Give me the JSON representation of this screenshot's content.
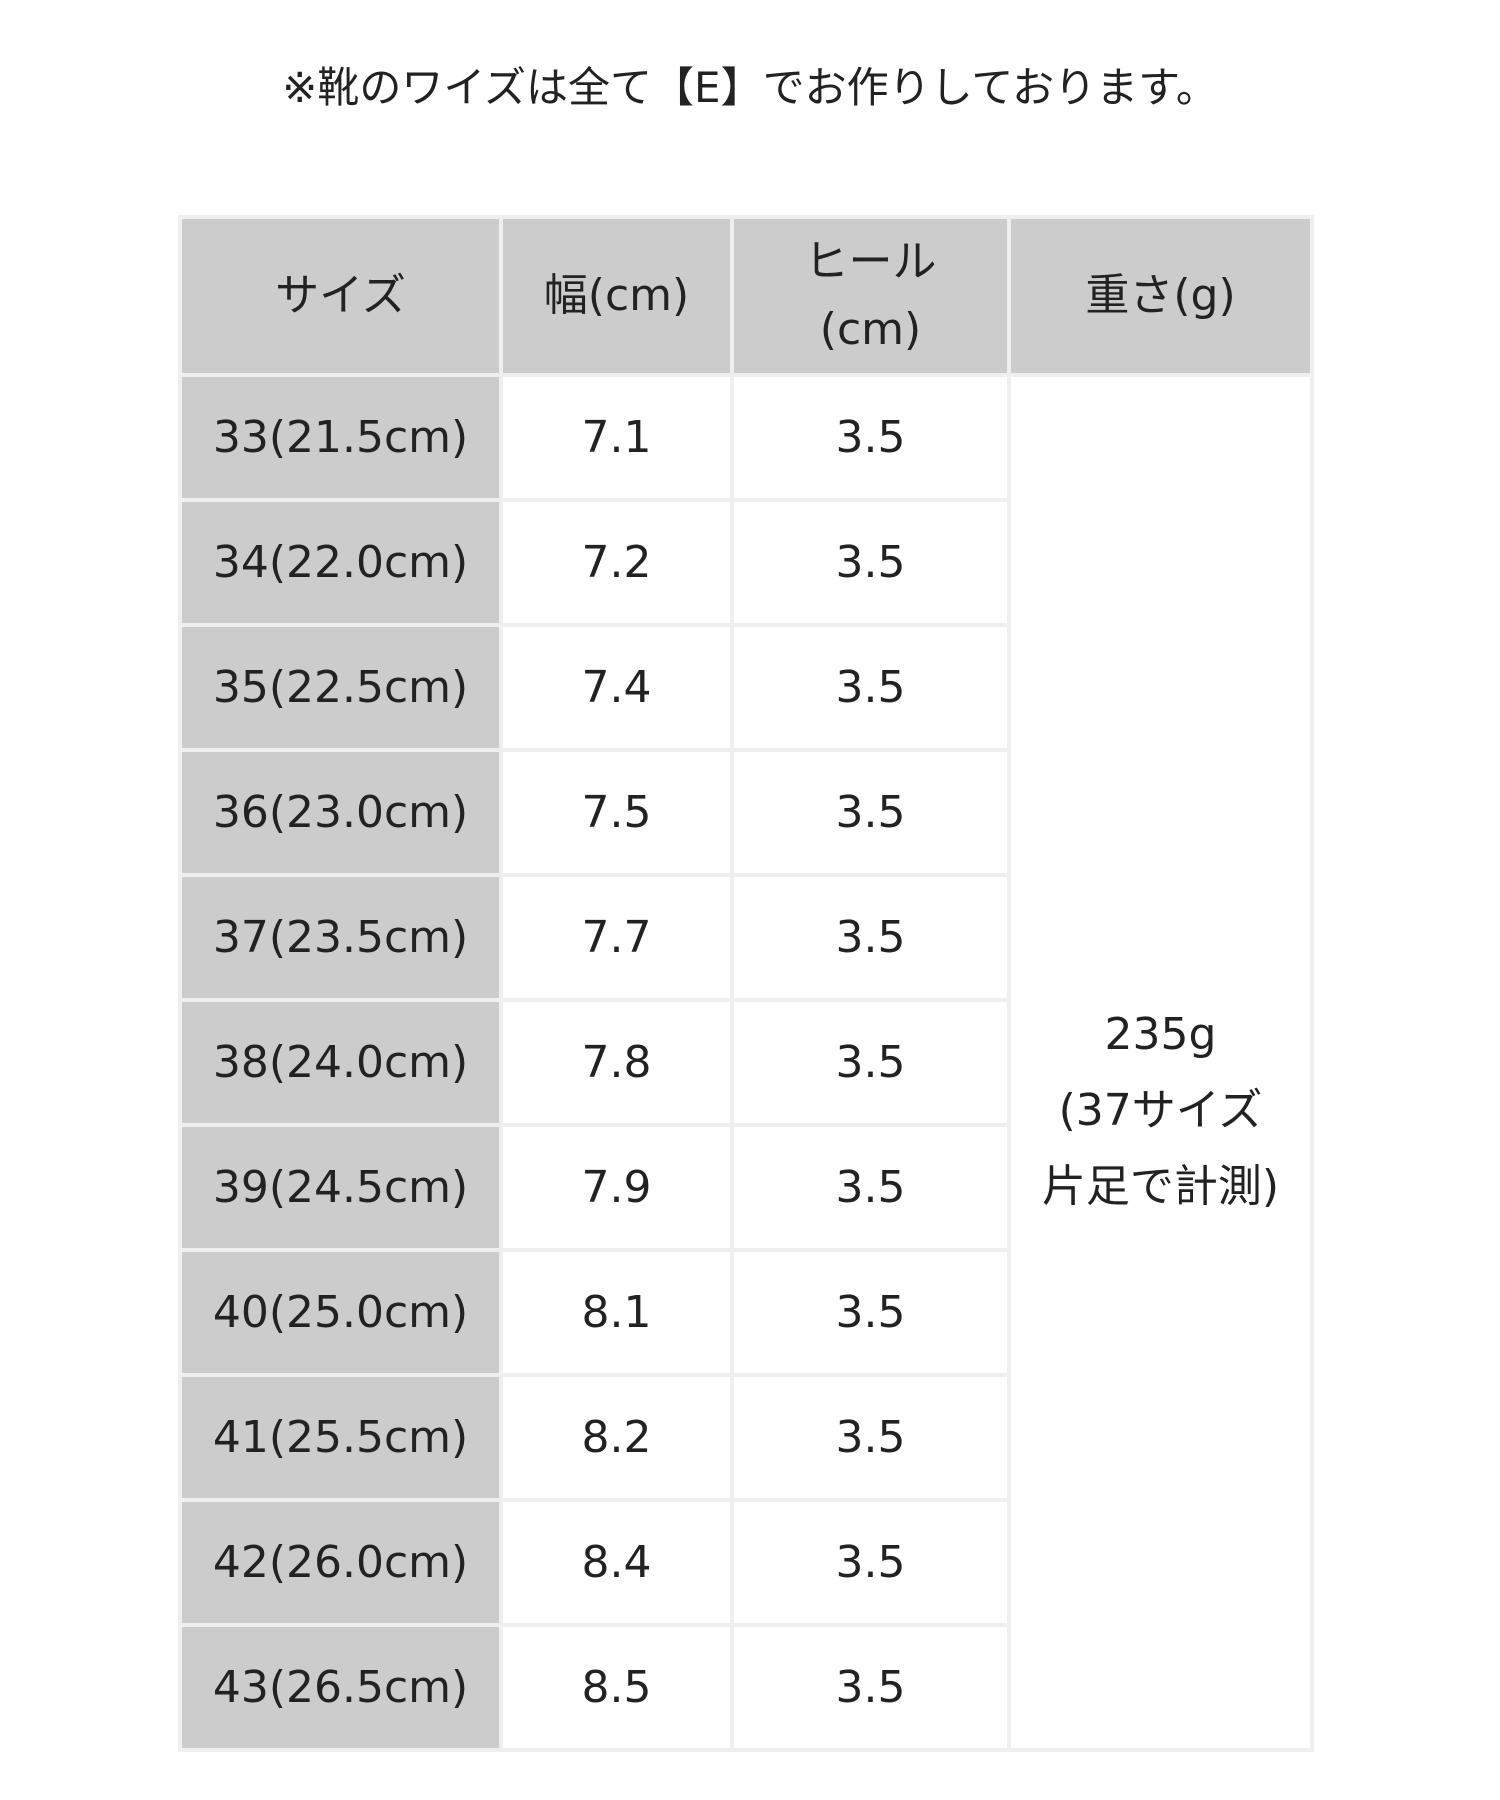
{
  "note": "※靴のワイズは全て【E】でお作りしております。",
  "table": {
    "headers": [
      "サイズ",
      "幅(cm)",
      "ヒール\n(cm)",
      "重さ(g)"
    ],
    "header_heel_line1": "ヒール",
    "header_heel_line2": "(cm)",
    "rows": [
      {
        "size": "33(21.5cm)",
        "width": "7.1",
        "heel": "3.5"
      },
      {
        "size": "34(22.0cm)",
        "width": "7.2",
        "heel": "3.5"
      },
      {
        "size": "35(22.5cm)",
        "width": "7.4",
        "heel": "3.5"
      },
      {
        "size": "36(23.0cm)",
        "width": "7.5",
        "heel": "3.5"
      },
      {
        "size": "37(23.5cm)",
        "width": "7.7",
        "heel": "3.5"
      },
      {
        "size": "38(24.0cm)",
        "width": "7.8",
        "heel": "3.5"
      },
      {
        "size": "39(24.5cm)",
        "width": "7.9",
        "heel": "3.5"
      },
      {
        "size": "40(25.0cm)",
        "width": "8.1",
        "heel": "3.5"
      },
      {
        "size": "41(25.5cm)",
        "width": "8.2",
        "heel": "3.5"
      },
      {
        "size": "42(26.0cm)",
        "width": "8.4",
        "heel": "3.5"
      },
      {
        "size": "43(26.5cm)",
        "width": "8.5",
        "heel": "3.5"
      }
    ],
    "weight_lines": [
      "235g",
      "(37サイズ",
      "片足で計測)"
    ]
  },
  "colors": {
    "header_bg": "#cccccc",
    "border": "#efefef"
  }
}
